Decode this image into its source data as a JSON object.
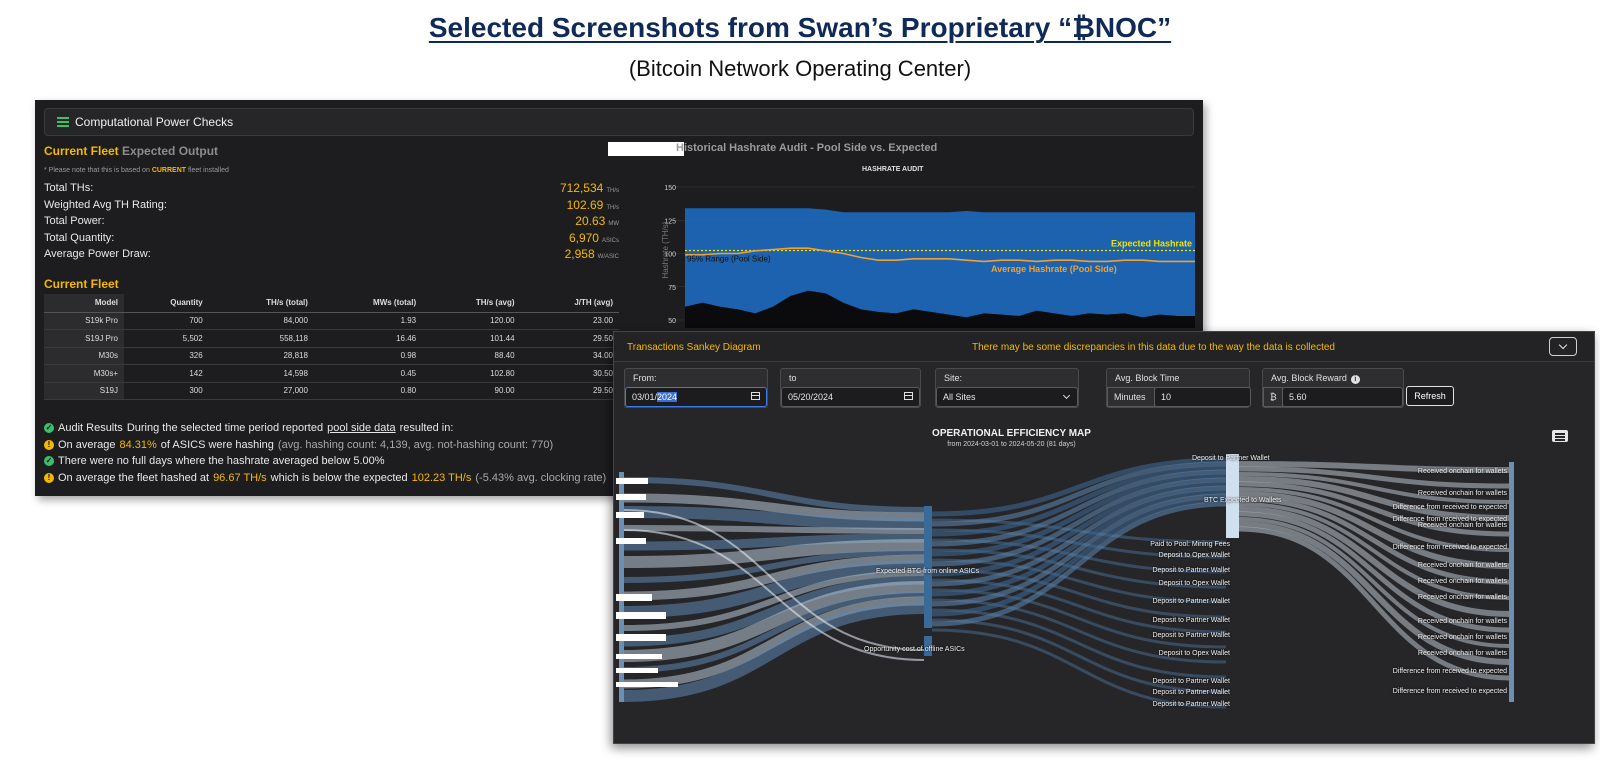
{
  "slide": {
    "title": "Selected Screenshots from Swan’s Proprietary “₿NOC”",
    "subtitle": "(Bitcoin Network Operating Center)"
  },
  "power_checks": {
    "header": "Computational Power Checks",
    "section_title": "Current Fleet",
    "section_subtitle": "Expected Output",
    "note_prefix": "* Please note that this is based on",
    "note_current": "CURRENT",
    "note_suffix": "fleet installed",
    "stats": [
      {
        "label": "Total THs:",
        "value": "712,534",
        "unit": "TH/s"
      },
      {
        "label": "Weighted Avg TH Rating:",
        "value": "102.69",
        "unit": "TH/s"
      },
      {
        "label": "Total Power:",
        "value": "20.63",
        "unit": "MW"
      },
      {
        "label": "Total Quantity:",
        "value": "6,970",
        "unit": "ASICs"
      },
      {
        "label": "Average Power Draw:",
        "value": "2,958",
        "unit": "W/ASIC"
      }
    ],
    "fleet_title": "Current Fleet",
    "table": {
      "headers": [
        "Model",
        "Quantity",
        "TH/s (total)",
        "MWs (total)",
        "TH/s (avg)",
        "J/TH (avg)"
      ],
      "rows": [
        [
          "S19k Pro",
          "700",
          "84,000",
          "1.93",
          "120.00",
          "23.00"
        ],
        [
          "S19J Pro",
          "5,502",
          "558,118",
          "16.46",
          "101.44",
          "29.50"
        ],
        [
          "M30s",
          "326",
          "28,818",
          "0.98",
          "88.40",
          "34.00"
        ],
        [
          "M30s+",
          "142",
          "14,598",
          "0.45",
          "102.80",
          "30.50"
        ],
        [
          "S19J",
          "300",
          "27,000",
          "0.80",
          "90.00",
          "29.50"
        ]
      ]
    },
    "audit": {
      "title": "Audit Results",
      "intro": "During the selected time period reported",
      "link": "pool side data",
      "intro_end": "resulted in:",
      "line1_a": "On average",
      "line1_pct": "84.31%",
      "line1_b": "of ASICS were hashing",
      "line1_detail": "(avg. hashing count: 4,139, avg. not-hashing count: 770)",
      "line2": "There were no full days where the hashrate averaged below 5.00%",
      "line3_a": "On average the fleet hashed at",
      "line3_v1": "96.67 TH/s",
      "line3_b": "which is below the expected",
      "line3_v2": "102.23 TH/s",
      "line3_detail": "(-5.43% avg. clocking rate)"
    }
  },
  "hashrate_chart": {
    "title": "Historical Hashrate Audit - Pool Side vs. Expected",
    "subtitle": "HASHRATE AUDIT",
    "ylabel": "Hashrate (TH/s)",
    "label_expected": "Expected Hashrate",
    "label_average": "Average Hashrate (Pool Side)",
    "label_range": "95% Range (Pool Side)"
  },
  "chart_data": {
    "type": "area",
    "title": "HASHRATE AUDIT",
    "ylabel": "Hashrate (TH/s)",
    "ylim": [
      50,
      150
    ],
    "yticks": [
      50,
      75,
      100,
      125,
      150
    ],
    "expected": 102.23,
    "series": [
      {
        "name": "95% Range (Pool Side)",
        "upper": [
          134,
          134,
          134,
          134,
          134,
          134,
          134,
          134,
          133,
          131,
          131,
          131,
          131,
          131,
          131,
          131,
          132,
          131,
          131,
          131,
          131,
          131,
          131,
          131,
          131,
          131,
          131,
          131,
          131,
          131
        ],
        "lower": [
          60,
          63,
          60,
          58,
          55,
          60,
          68,
          72,
          70,
          63,
          58,
          56,
          55,
          58,
          56,
          54,
          52,
          55,
          54,
          53,
          57,
          55,
          53,
          55,
          54,
          55,
          52,
          54,
          53,
          53
        ]
      },
      {
        "name": "Average Hashrate (Pool Side)",
        "values": [
          99,
          99,
          100,
          100,
          102,
          103,
          104,
          104,
          102,
          100,
          97,
          95,
          95,
          96,
          96,
          96,
          95,
          94,
          95,
          95,
          94,
          95,
          95,
          94,
          94,
          95,
          95,
          94,
          94,
          94
        ]
      }
    ]
  },
  "sankey": {
    "header": "Transactions Sankey Diagram",
    "warning": "There may be some discrepancies in this data due to the way the data is collected",
    "from_label": "From:",
    "from_value_a": "03/01/",
    "from_value_b": "2024",
    "to_label": "to",
    "to_value": "05/20/2024",
    "site_label": "Site:",
    "site_value": "All Sites",
    "block_time_label": "Avg. Block Time",
    "block_time_unit": "Minutes",
    "block_time_value": "10",
    "block_reward_label": "Avg. Block Reward",
    "block_reward_unit": "₿",
    "block_reward_value": "5.60",
    "refresh_label": "Refresh",
    "map_title": "OPERATIONAL EFFICIENCY MAP",
    "map_subtitle": "from 2024-03-01 to 2024-05-20 (81 days)",
    "node_mid_top": "Expected BTC from online ASICs",
    "node_mid_bottom": "Opportunity cost of offline ASICs",
    "node_top_right": "Deposit to Partner Wallet",
    "node_btc": "BTC Expected to Wallets",
    "mid_labels": [
      "Paid to Pool: Mining Fees",
      "Deposit to Opex Wallet",
      "Deposit to Partner Wallet",
      "Deposit to Opex Wallet",
      "Deposit to Partner Wallet",
      "Deposit to Partner Wallet",
      "Deposit to Partner Wallet",
      "Deposit to Opex Wallet",
      "Deposit to Partner Wallet",
      "Deposit to Partner Wallet",
      "Deposit to Partner Wallet"
    ],
    "right_labels": [
      "Received onchain for wallets",
      "Received onchain for wallets",
      "Difference from received to expected",
      "Difference from received to expected",
      "Received onchain for wallets",
      "Difference from received to expected",
      "Received onchain for wallets",
      "Received onchain for wallets",
      "Received onchain for wallets",
      "Received onchain for wallets",
      "Received onchain for wallets",
      "Received onchain for wallets",
      "Difference from received to expected",
      "Difference from received to expected"
    ]
  }
}
